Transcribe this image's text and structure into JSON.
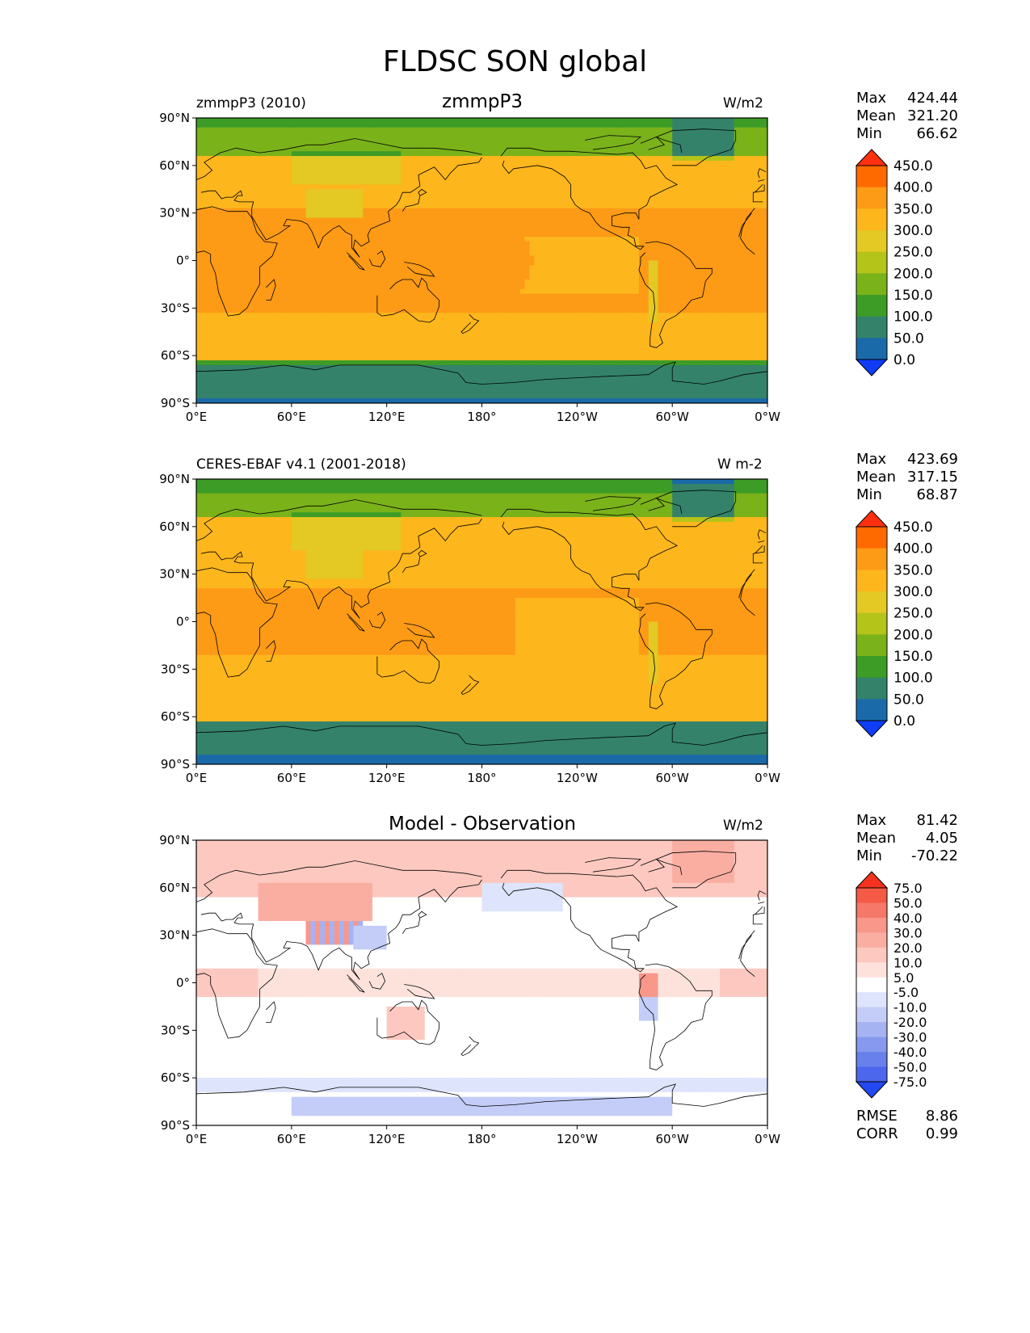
{
  "title": "FLDSC SON global",
  "panels": [
    {
      "left_label": "zmmpP3 (2010)",
      "center_title": "zmmpP3",
      "units": "W/m2",
      "stats": [
        {
          "label": "Max",
          "value": "424.44"
        },
        {
          "label": "Mean",
          "value": "321.20"
        },
        {
          "label": "Min",
          "value": "66.62"
        }
      ],
      "colorbar": {
        "levels": [
          "450.0",
          "400.0",
          "350.0",
          "300.0",
          "250.0",
          "200.0",
          "150.0",
          "100.0",
          "50.0",
          "0.0"
        ],
        "colors": [
          "#ff3010",
          "#ff6a00",
          "#fd9a16",
          "#fdb61c",
          "#e4c824",
          "#b4c418",
          "#7ab21a",
          "#3d9c26",
          "#34826a",
          "#1a6aaa",
          "#0f3cf5"
        ]
      }
    },
    {
      "left_label": "CERES-EBAF v4.1 (2001-2018)",
      "center_title": "",
      "units": "W m-2",
      "stats": [
        {
          "label": "Max",
          "value": "423.69"
        },
        {
          "label": "Mean",
          "value": "317.15"
        },
        {
          "label": "Min",
          "value": "68.87"
        }
      ],
      "colorbar": {
        "levels": [
          "450.0",
          "400.0",
          "350.0",
          "300.0",
          "250.0",
          "200.0",
          "150.0",
          "100.0",
          "50.0",
          "0.0"
        ],
        "colors": [
          "#ff3010",
          "#ff6a00",
          "#fd9a16",
          "#fdb61c",
          "#e4c824",
          "#b4c418",
          "#7ab21a",
          "#3d9c26",
          "#34826a",
          "#1a6aaa",
          "#0f3cf5"
        ]
      }
    },
    {
      "left_label": "",
      "center_title": "Model - Observation",
      "units": "W/m2",
      "stats": [
        {
          "label": "Max",
          "value": "81.42"
        },
        {
          "label": "Mean",
          "value": "4.05"
        },
        {
          "label": "Min",
          "value": "-70.22"
        }
      ],
      "extra_stats": [
        {
          "label": "RMSE",
          "value": "8.86"
        },
        {
          "label": "CORR",
          "value": "0.99"
        }
      ],
      "colorbar": {
        "levels": [
          "75.0",
          "50.0",
          "40.0",
          "30.0",
          "20.0",
          "10.0",
          "5.0",
          "-5.0",
          "-10.0",
          "-20.0",
          "-30.0",
          "-40.0",
          "-50.0",
          "-75.0"
        ],
        "colors": [
          "#f5321e",
          "#f55a46",
          "#f57868",
          "#f8978a",
          "#faaea2",
          "#fcc8c0",
          "#fde2dc",
          "#ffffff",
          "#dde4fb",
          "#c3cdf7",
          "#a5b3f2",
          "#8699ee",
          "#6880ec",
          "#4c66ec",
          "#2448f0"
        ]
      }
    }
  ],
  "lon_ticks": [
    "0°E",
    "60°E",
    "120°E",
    "180°",
    "120°W",
    "60°W",
    "0°W"
  ],
  "lat_ticks": [
    "90°N",
    "60°N",
    "30°N",
    "0°",
    "30°S",
    "60°S",
    "90°S"
  ]
}
